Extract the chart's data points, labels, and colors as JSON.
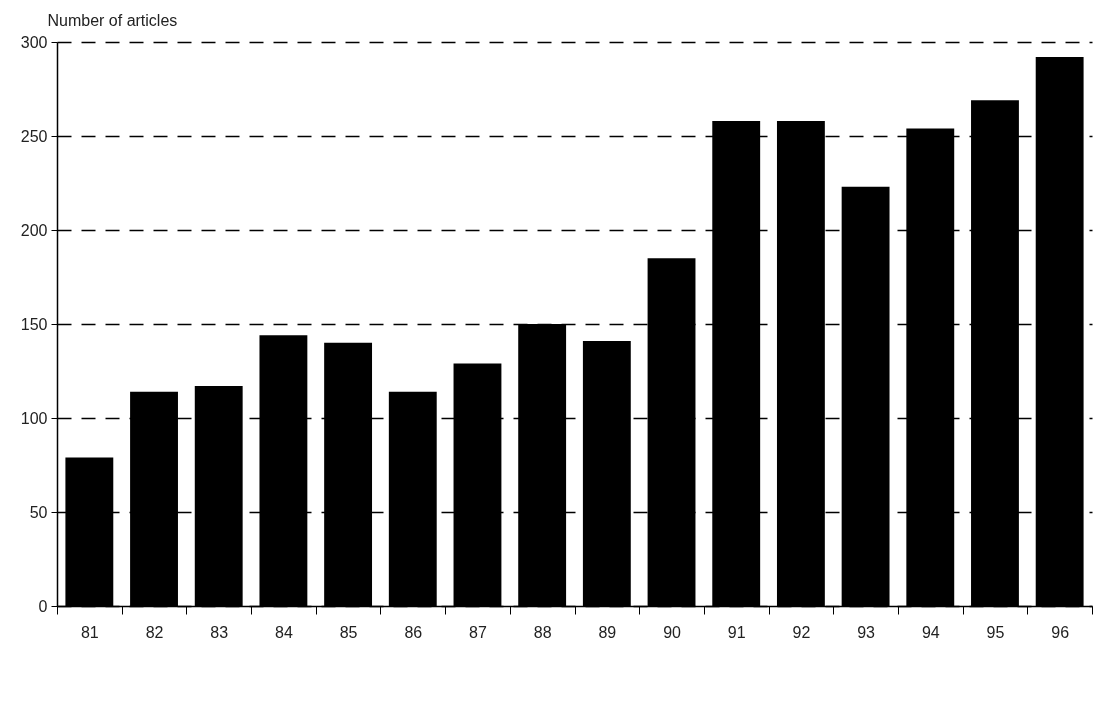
{
  "chart_data": {
    "type": "bar",
    "ylabel": "Number of articles",
    "categories": [
      "81",
      "82",
      "83",
      "84",
      "85",
      "86",
      "87",
      "88",
      "89",
      "90",
      "91",
      "92",
      "93",
      "94",
      "95",
      "96"
    ],
    "values": [
      79,
      114,
      117,
      144,
      140,
      114,
      129,
      150,
      141,
      185,
      258,
      258,
      223,
      254,
      269,
      292
    ],
    "color": "#000000",
    "ylim": [
      0,
      300
    ],
    "yticks": [
      0,
      50,
      100,
      150,
      200,
      250,
      300
    ],
    "grid": "y",
    "line_style": "dashed"
  }
}
